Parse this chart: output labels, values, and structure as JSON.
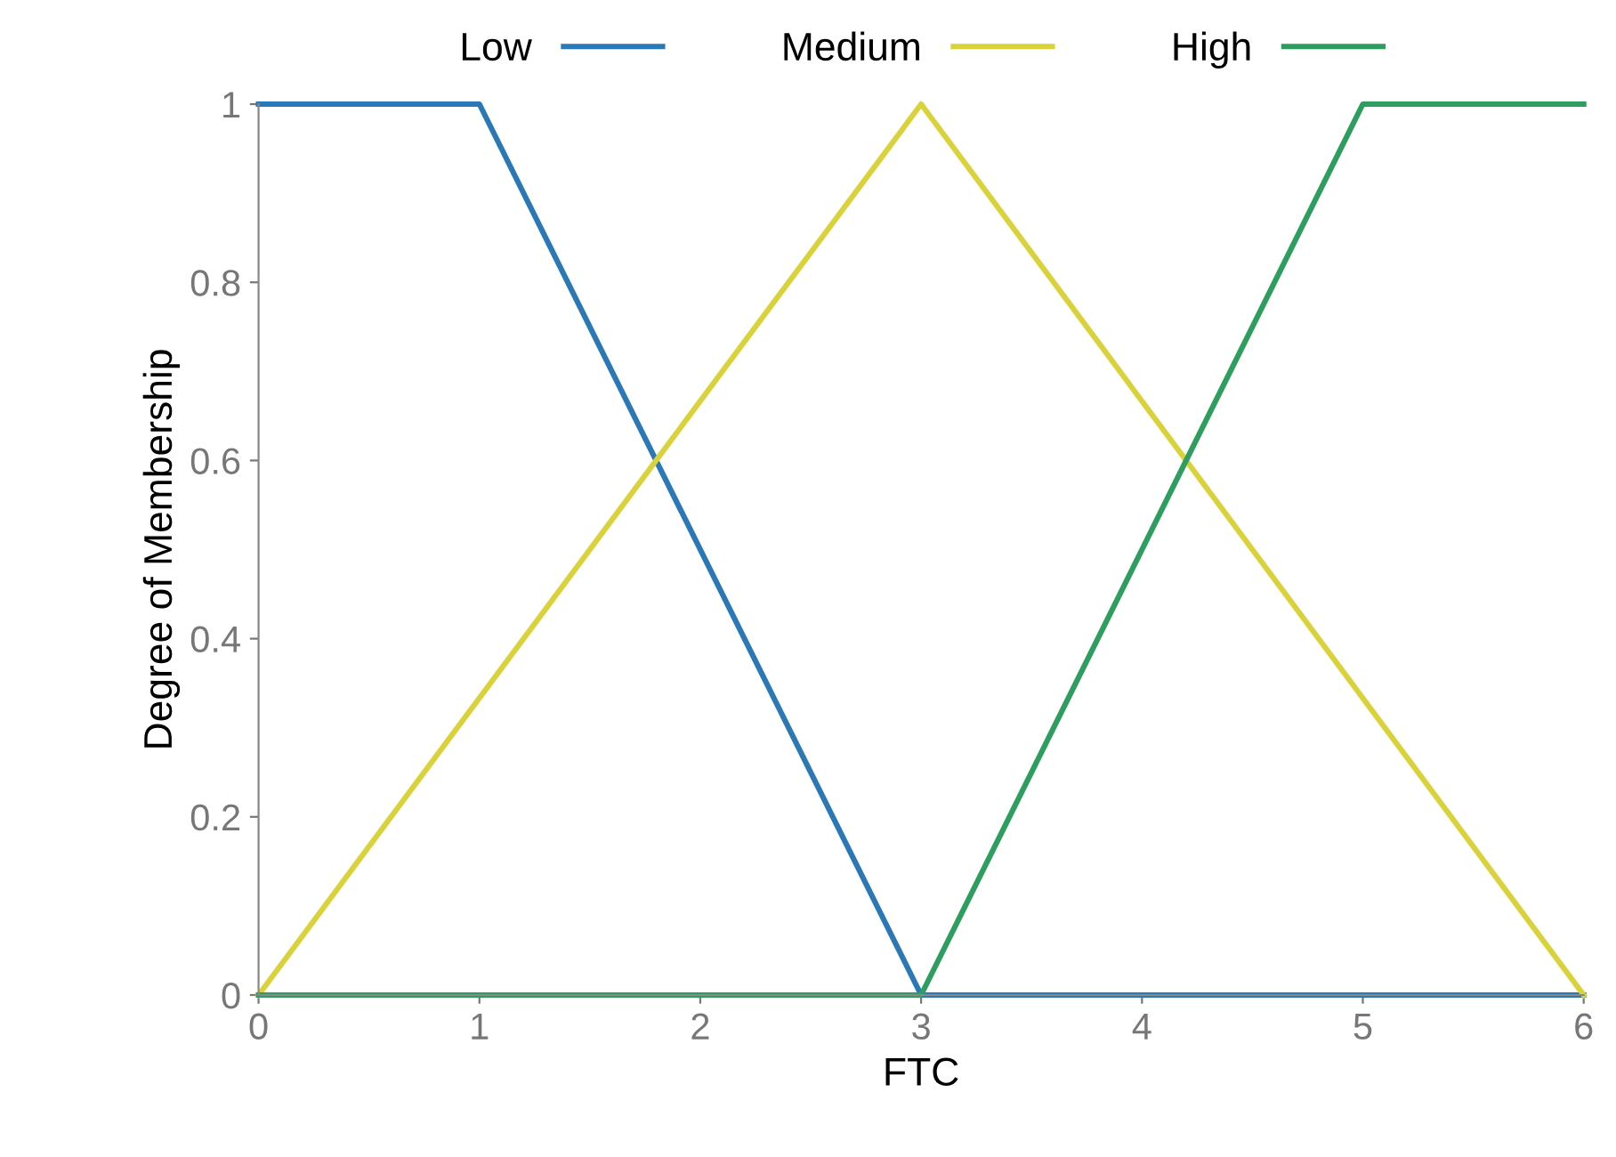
{
  "chart_data": {
    "type": "line",
    "xlabel": "FTC",
    "ylabel": "Degree of Membership",
    "xlim": [
      0,
      6
    ],
    "ylim": [
      0,
      1
    ],
    "xticks": [
      0,
      1,
      2,
      3,
      4,
      5,
      6
    ],
    "yticks": [
      0,
      0.2,
      0.4,
      0.6,
      0.8,
      1
    ],
    "grid": false,
    "legend": "top",
    "marker": "none",
    "line_style": "solid",
    "series": [
      {
        "name": "Low",
        "color": "#2a78b5",
        "x": [
          0,
          1,
          3,
          6
        ],
        "values": [
          1,
          1,
          0,
          0
        ]
      },
      {
        "name": "Medium",
        "color": "#d9d23a",
        "x": [
          0,
          3,
          6
        ],
        "values": [
          0,
          1,
          0
        ]
      },
      {
        "name": "High",
        "color": "#2e9e5e",
        "x": [
          0,
          3,
          5,
          6
        ],
        "values": [
          0,
          0,
          1,
          1
        ]
      }
    ]
  }
}
